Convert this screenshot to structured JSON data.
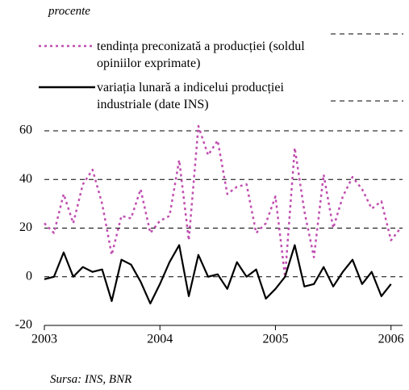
{
  "chart_data": {
    "type": "line",
    "axis_label": "procente",
    "source": "Sursa: INS, BNR",
    "x": [
      2003,
      2003.083,
      2003.167,
      2003.25,
      2003.333,
      2003.417,
      2003.5,
      2003.583,
      2003.667,
      2003.75,
      2003.833,
      2003.917,
      2004,
      2004.083,
      2004.167,
      2004.25,
      2004.333,
      2004.417,
      2004.5,
      2004.583,
      2004.667,
      2004.75,
      2004.833,
      2004.917,
      2005,
      2005.083,
      2005.167,
      2005.25,
      2005.333,
      2005.417,
      2005.5,
      2005.583,
      2005.667,
      2005.75,
      2005.833,
      2005.917,
      2006,
      2006.083
    ],
    "series": [
      {
        "name": "tendința preconizată a producției (soldul opiniilor exprimate)",
        "color": "#c04fb0",
        "dash": true,
        "values": [
          22,
          18,
          34,
          22,
          38,
          44,
          30,
          9,
          25,
          24,
          36,
          18,
          23,
          25,
          48,
          15,
          62,
          50,
          56,
          34,
          37,
          38,
          18,
          22,
          33,
          0,
          53,
          27,
          8,
          42,
          20,
          33,
          41,
          36,
          28,
          31,
          15,
          20
        ]
      },
      {
        "name": "variația lunară a indicelui producției industriale (date INS)",
        "color": "#000000",
        "dash": false,
        "values": [
          -1,
          0,
          10,
          0,
          4,
          2,
          3,
          -10,
          7,
          5,
          -2,
          -11,
          -3,
          6,
          13,
          -8,
          9,
          0,
          1,
          -5,
          6,
          0,
          3,
          -9,
          -5,
          0,
          13,
          -4,
          -3,
          4,
          -4,
          2,
          7,
          -3,
          2,
          -8,
          -3,
          null
        ]
      }
    ],
    "xlim": [
      2003,
      2006.1
    ],
    "xticks": [
      2003,
      2004,
      2005,
      2006
    ],
    "ylim": [
      -20,
      60
    ],
    "yticks": [
      -20,
      0,
      20,
      40,
      60
    ],
    "grid": true
  }
}
